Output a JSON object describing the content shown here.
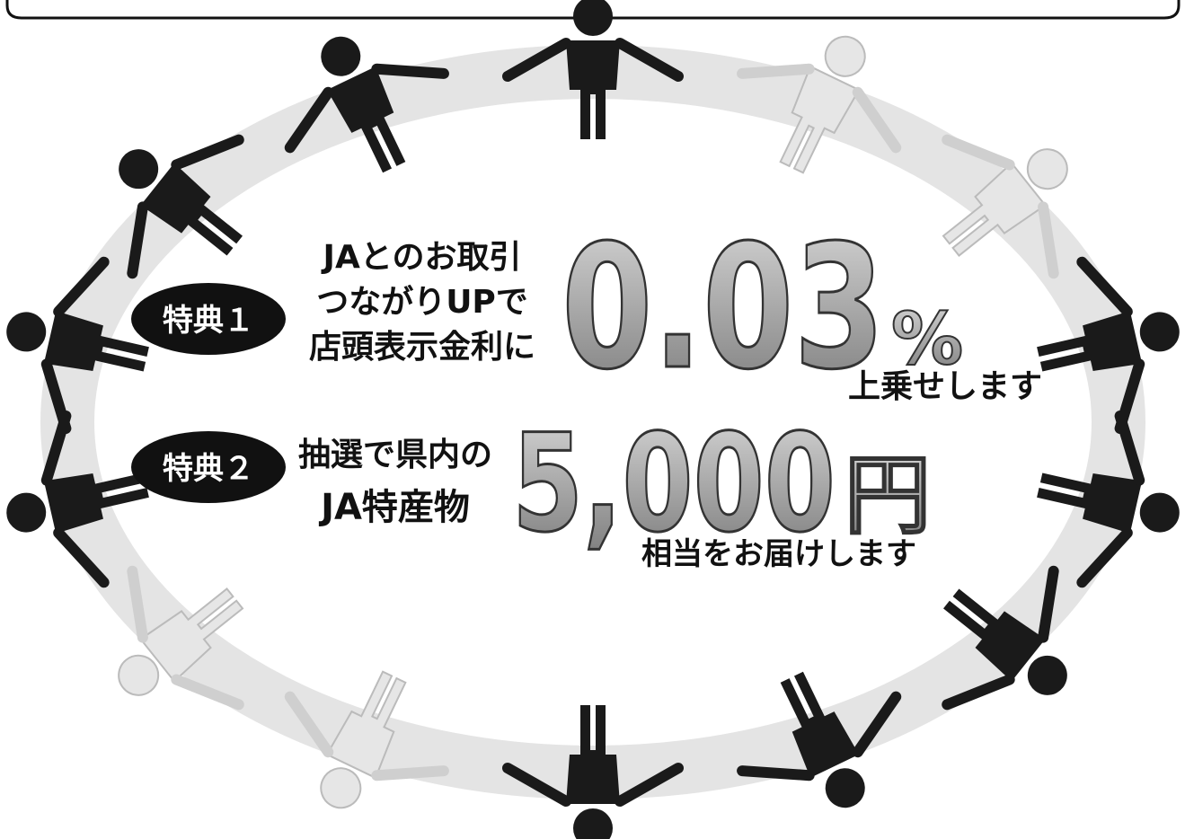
{
  "benefits": [
    {
      "badge": "特典１",
      "lines": [
        "JAとのお取引",
        "つながりUPで",
        "店頭表示金利に"
      ],
      "amount": "0.03",
      "unit": "%",
      "note": "上乗せします"
    },
    {
      "badge": "特典２",
      "lines": [
        "抽選で県内の",
        "JA特産物"
      ],
      "amount": "5,000",
      "unit": "円",
      "note": "相当をお届けします"
    }
  ]
}
